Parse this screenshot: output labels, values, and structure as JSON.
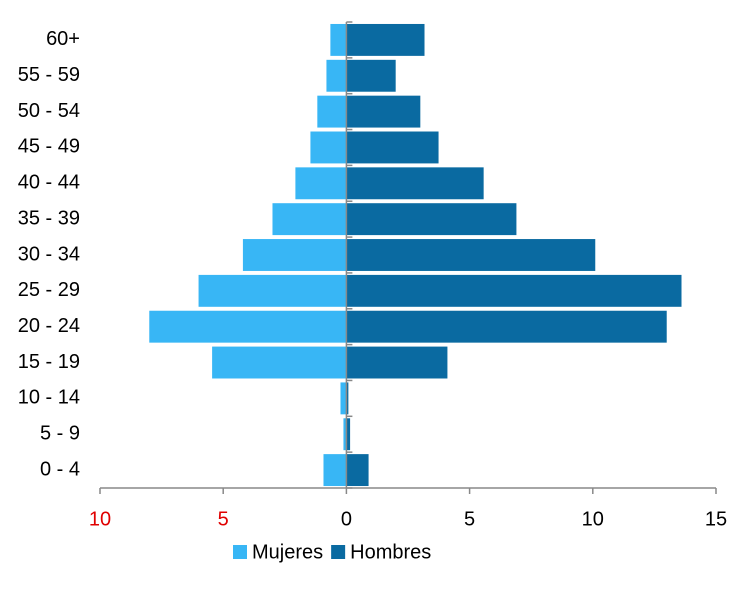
{
  "chart_data": {
    "type": "bar",
    "orientation": "horizontal",
    "categories": [
      "0 - 4",
      "5 - 9",
      "10 - 14",
      "15 - 19",
      "20 - 24",
      "25 - 29",
      "30 - 34",
      "35 - 39",
      "40 - 44",
      "45 - 49",
      "50 - 54",
      "55 - 59",
      "60+"
    ],
    "series": [
      {
        "name": "Mujeres",
        "color": "#38b6f5",
        "values": [
          -0.93,
          -0.12,
          -0.24,
          -5.45,
          -8.0,
          -6.0,
          -4.2,
          -3.0,
          -2.07,
          -1.46,
          -1.18,
          -0.81,
          -0.65
        ]
      },
      {
        "name": "Hombres",
        "color": "#0a6aa1",
        "values": [
          0.9,
          0.15,
          0.08,
          4.1,
          13.0,
          13.6,
          10.1,
          6.9,
          5.57,
          3.74,
          3.0,
          2.0,
          3.17
        ]
      }
    ],
    "xlim": [
      -10,
      15
    ],
    "xticks": [
      {
        "value": -10,
        "label": "10"
      },
      {
        "value": -5,
        "label": "5"
      },
      0,
      5,
      10,
      15
    ],
    "negative_tick_color": "#e00000",
    "legend": "bottom"
  }
}
